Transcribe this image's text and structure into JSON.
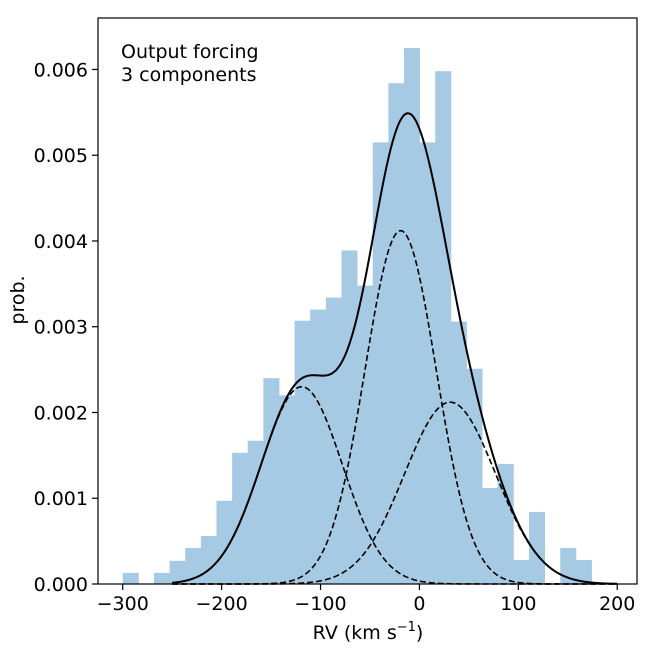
{
  "chart_data": {
    "type": "bar",
    "annotation": [
      "Output forcing",
      "3 components"
    ],
    "xlabel": "RV (km s",
    "xlabel_sup": "−1",
    "xlabel_tail": ")",
    "ylabel": "prob.",
    "xlim": [
      -325,
      220
    ],
    "ylim": [
      0,
      0.0066
    ],
    "xticks": [
      -300,
      -200,
      -100,
      0,
      100,
      200
    ],
    "xtick_labels": [
      "−300",
      "−200",
      "−100",
      "0",
      "100",
      "200"
    ],
    "yticks": [
      0,
      0.001,
      0.002,
      0.003,
      0.004,
      0.005,
      0.006
    ],
    "ytick_labels": [
      "0.000",
      "0.001",
      "0.002",
      "0.003",
      "0.004",
      "0.005",
      "0.006"
    ],
    "grid": false,
    "histogram": {
      "color": "#a6cae3",
      "bin_width": 15.8,
      "bin_left_edges": [
        -300,
        -284.2,
        -268.4,
        -252.6,
        -236.8,
        -221,
        -205.2,
        -189.4,
        -173.6,
        -157.8,
        -142,
        -126.2,
        -110.4,
        -94.6,
        -78.8,
        -63,
        -47.2,
        -31.4,
        -15.6,
        0.2,
        16,
        31.8,
        47.6,
        63.4,
        79.2,
        95,
        110.8,
        126.6,
        142.4,
        158.2
      ],
      "values": [
        0.00013,
        0.0,
        0.00013,
        0.00027,
        0.00042,
        0.00056,
        0.00097,
        0.00153,
        0.00167,
        0.0024,
        0.0022,
        0.00307,
        0.0032,
        0.00334,
        0.00389,
        0.00348,
        0.00515,
        0.00584,
        0.00625,
        0.00515,
        0.00598,
        0.00306,
        0.00251,
        0.00112,
        0.0014,
        0.00028,
        0.00084,
        0.0,
        0.00042,
        0.00028
      ]
    },
    "series": [
      {
        "style": "solid",
        "color": "#000000",
        "model": "sum",
        "x_range": [
          -250,
          200
        ]
      },
      {
        "style": "dashed",
        "color": "#000000",
        "model": "gaussian",
        "amplitude": 0.0023,
        "mean": -119,
        "sigma": 41,
        "x_range": [
          -250,
          200
        ]
      },
      {
        "style": "dashed",
        "color": "#000000",
        "model": "gaussian",
        "amplitude": 0.00412,
        "mean": -19,
        "sigma": 36,
        "x_range": [
          -250,
          200
        ]
      },
      {
        "style": "dashed",
        "color": "#000000",
        "model": "gaussian",
        "amplitude": 0.00212,
        "mean": 31,
        "sigma": 46,
        "x_range": [
          -250,
          200
        ]
      }
    ]
  }
}
